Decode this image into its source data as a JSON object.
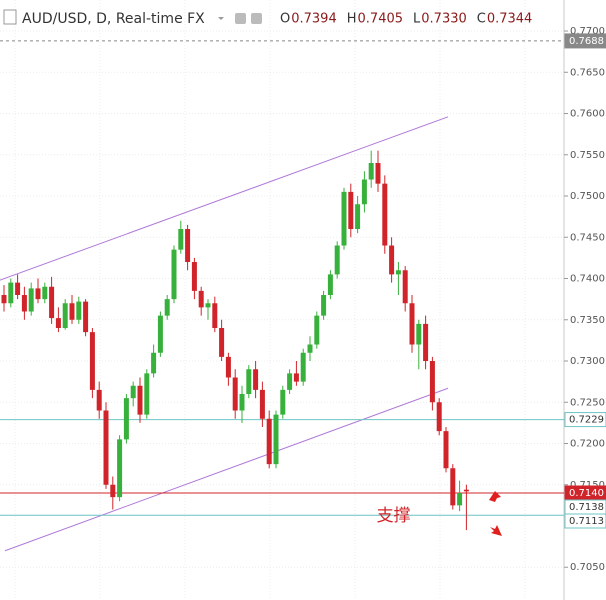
{
  "chart_data": {
    "type": "candlestick",
    "title": "AUD/USD, D, Real-time FX",
    "ohlc_readout": [
      {
        "key": "O",
        "value": "0.7394"
      },
      {
        "key": "H",
        "value": "0.7405"
      },
      {
        "key": "L",
        "value": "0.7330"
      },
      {
        "key": "C",
        "value": "0.7344"
      }
    ],
    "up_color": "#38b03c",
    "down_color": "#d0242a",
    "ylim": [
      0.70103,
      0.77376
    ],
    "yticks": [
      {
        "value": 0.77,
        "label": "0.7700"
      },
      {
        "value": 0.765,
        "label": "0.7650"
      },
      {
        "value": 0.76,
        "label": "0.7600"
      },
      {
        "value": 0.755,
        "label": "0.7550"
      },
      {
        "value": 0.75,
        "label": "0.7500"
      },
      {
        "value": 0.745,
        "label": "0.7450"
      },
      {
        "value": 0.74,
        "label": "0.7400"
      },
      {
        "value": 0.735,
        "label": "0.7350"
      },
      {
        "value": 0.73,
        "label": "0.7300"
      },
      {
        "value": 0.725,
        "label": "0.7250"
      },
      {
        "value": 0.72,
        "label": "0.7200"
      },
      {
        "value": 0.715,
        "label": "0.7150"
      },
      {
        "value": 0.705,
        "label": "0.7050"
      }
    ],
    "grid": true,
    "candles": [
      [
        0.738,
        0.7392,
        0.736,
        0.737
      ],
      [
        0.737,
        0.74,
        0.7365,
        0.7395
      ],
      [
        0.7395,
        0.7405,
        0.7375,
        0.738
      ],
      [
        0.738,
        0.739,
        0.735,
        0.736
      ],
      [
        0.736,
        0.7395,
        0.7355,
        0.7388
      ],
      [
        0.7388,
        0.74,
        0.737,
        0.7375
      ],
      [
        0.7375,
        0.7395,
        0.737,
        0.739
      ],
      [
        0.739,
        0.7402,
        0.7345,
        0.7352
      ],
      [
        0.7352,
        0.7365,
        0.7335,
        0.734
      ],
      [
        0.734,
        0.7375,
        0.7338,
        0.737
      ],
      [
        0.737,
        0.738,
        0.7345,
        0.735
      ],
      [
        0.735,
        0.7378,
        0.7345,
        0.7372
      ],
      [
        0.7372,
        0.7375,
        0.733,
        0.7335
      ],
      [
        0.7335,
        0.734,
        0.7255,
        0.7265
      ],
      [
        0.7265,
        0.7275,
        0.723,
        0.724
      ],
      [
        0.724,
        0.725,
        0.7145,
        0.715
      ],
      [
        0.715,
        0.716,
        0.712,
        0.7135
      ],
      [
        0.7135,
        0.721,
        0.713,
        0.7205
      ],
      [
        0.7205,
        0.726,
        0.72,
        0.7255
      ],
      [
        0.7255,
        0.7275,
        0.7245,
        0.727
      ],
      [
        0.727,
        0.728,
        0.7225,
        0.7235
      ],
      [
        0.7235,
        0.729,
        0.723,
        0.7285
      ],
      [
        0.7285,
        0.732,
        0.728,
        0.731
      ],
      [
        0.731,
        0.736,
        0.7305,
        0.7355
      ],
      [
        0.7355,
        0.738,
        0.735,
        0.7375
      ],
      [
        0.7375,
        0.744,
        0.737,
        0.7435
      ],
      [
        0.7435,
        0.747,
        0.743,
        0.746
      ],
      [
        0.746,
        0.7465,
        0.741,
        0.742
      ],
      [
        0.742,
        0.7425,
        0.7375,
        0.7385
      ],
      [
        0.7385,
        0.739,
        0.7355,
        0.7365
      ],
      [
        0.7365,
        0.7375,
        0.735,
        0.737
      ],
      [
        0.737,
        0.7378,
        0.7335,
        0.734
      ],
      [
        0.734,
        0.735,
        0.73,
        0.7305
      ],
      [
        0.7305,
        0.731,
        0.727,
        0.728
      ],
      [
        0.728,
        0.729,
        0.723,
        0.724
      ],
      [
        0.724,
        0.727,
        0.7225,
        0.726
      ],
      [
        0.726,
        0.7295,
        0.7255,
        0.729
      ],
      [
        0.729,
        0.73,
        0.7255,
        0.7265
      ],
      [
        0.7265,
        0.7275,
        0.722,
        0.723
      ],
      [
        0.723,
        0.724,
        0.717,
        0.7175
      ],
      [
        0.7175,
        0.724,
        0.717,
        0.7235
      ],
      [
        0.7235,
        0.727,
        0.723,
        0.7265
      ],
      [
        0.7265,
        0.729,
        0.726,
        0.7285
      ],
      [
        0.7285,
        0.73,
        0.727,
        0.7275
      ],
      [
        0.7275,
        0.7315,
        0.727,
        0.731
      ],
      [
        0.731,
        0.733,
        0.73,
        0.732
      ],
      [
        0.732,
        0.736,
        0.7315,
        0.7355
      ],
      [
        0.7355,
        0.7385,
        0.735,
        0.738
      ],
      [
        0.738,
        0.741,
        0.7375,
        0.7405
      ],
      [
        0.7405,
        0.7445,
        0.74,
        0.744
      ],
      [
        0.744,
        0.751,
        0.7435,
        0.7505
      ],
      [
        0.7505,
        0.7515,
        0.745,
        0.746
      ],
      [
        0.746,
        0.75,
        0.7455,
        0.749
      ],
      [
        0.749,
        0.753,
        0.748,
        0.752
      ],
      [
        0.752,
        0.7555,
        0.751,
        0.754
      ],
      [
        0.754,
        0.7555,
        0.7505,
        0.7515
      ],
      [
        0.7515,
        0.7525,
        0.743,
        0.744
      ],
      [
        0.744,
        0.745,
        0.7395,
        0.7405
      ],
      [
        0.7405,
        0.742,
        0.738,
        0.741
      ],
      [
        0.741,
        0.7415,
        0.736,
        0.737
      ],
      [
        0.737,
        0.738,
        0.731,
        0.732
      ],
      [
        0.732,
        0.735,
        0.729,
        0.7345
      ],
      [
        0.7345,
        0.7355,
        0.729,
        0.73
      ],
      [
        0.73,
        0.7305,
        0.724,
        0.725
      ],
      [
        0.725,
        0.7255,
        0.721,
        0.7215
      ],
      [
        0.7215,
        0.722,
        0.7165,
        0.717
      ],
      [
        0.717,
        0.7175,
        0.712,
        0.7125
      ],
      [
        0.7125,
        0.7155,
        0.7118,
        0.714
      ],
      [
        0.7144,
        0.715,
        0.7095,
        0.7142
      ]
    ],
    "levels": [
      {
        "value": 0.7688,
        "label": "0.7688",
        "color": "#888888",
        "line": "dashed"
      },
      {
        "value": 0.7229,
        "label": "0.7229",
        "color": "#6cc4c4",
        "line": "solid"
      },
      {
        "value": 0.714,
        "label": "0.7140",
        "color": "#d0242a",
        "line": "solid"
      },
      {
        "value": 0.7138,
        "label": "0.7138",
        "color": "#6cc4c4",
        "line": "none"
      },
      {
        "value": 0.7113,
        "label": "0.7113",
        "color": "#6cc4c4",
        "line": "solid"
      }
    ],
    "trendlines": [
      {
        "x": [
          -0.6,
          65.3
        ],
        "y": [
          0.7398,
          0.7596
        ],
        "color": "#b07ad8"
      },
      {
        "x": [
          0.15,
          65.3
        ],
        "y": [
          0.707,
          0.7267
        ],
        "color": "#b07ad8"
      }
    ],
    "annotations": [
      {
        "text": "支撑",
        "x": 57.3,
        "y": 0.7112,
        "color": "#d0242a"
      }
    ]
  }
}
